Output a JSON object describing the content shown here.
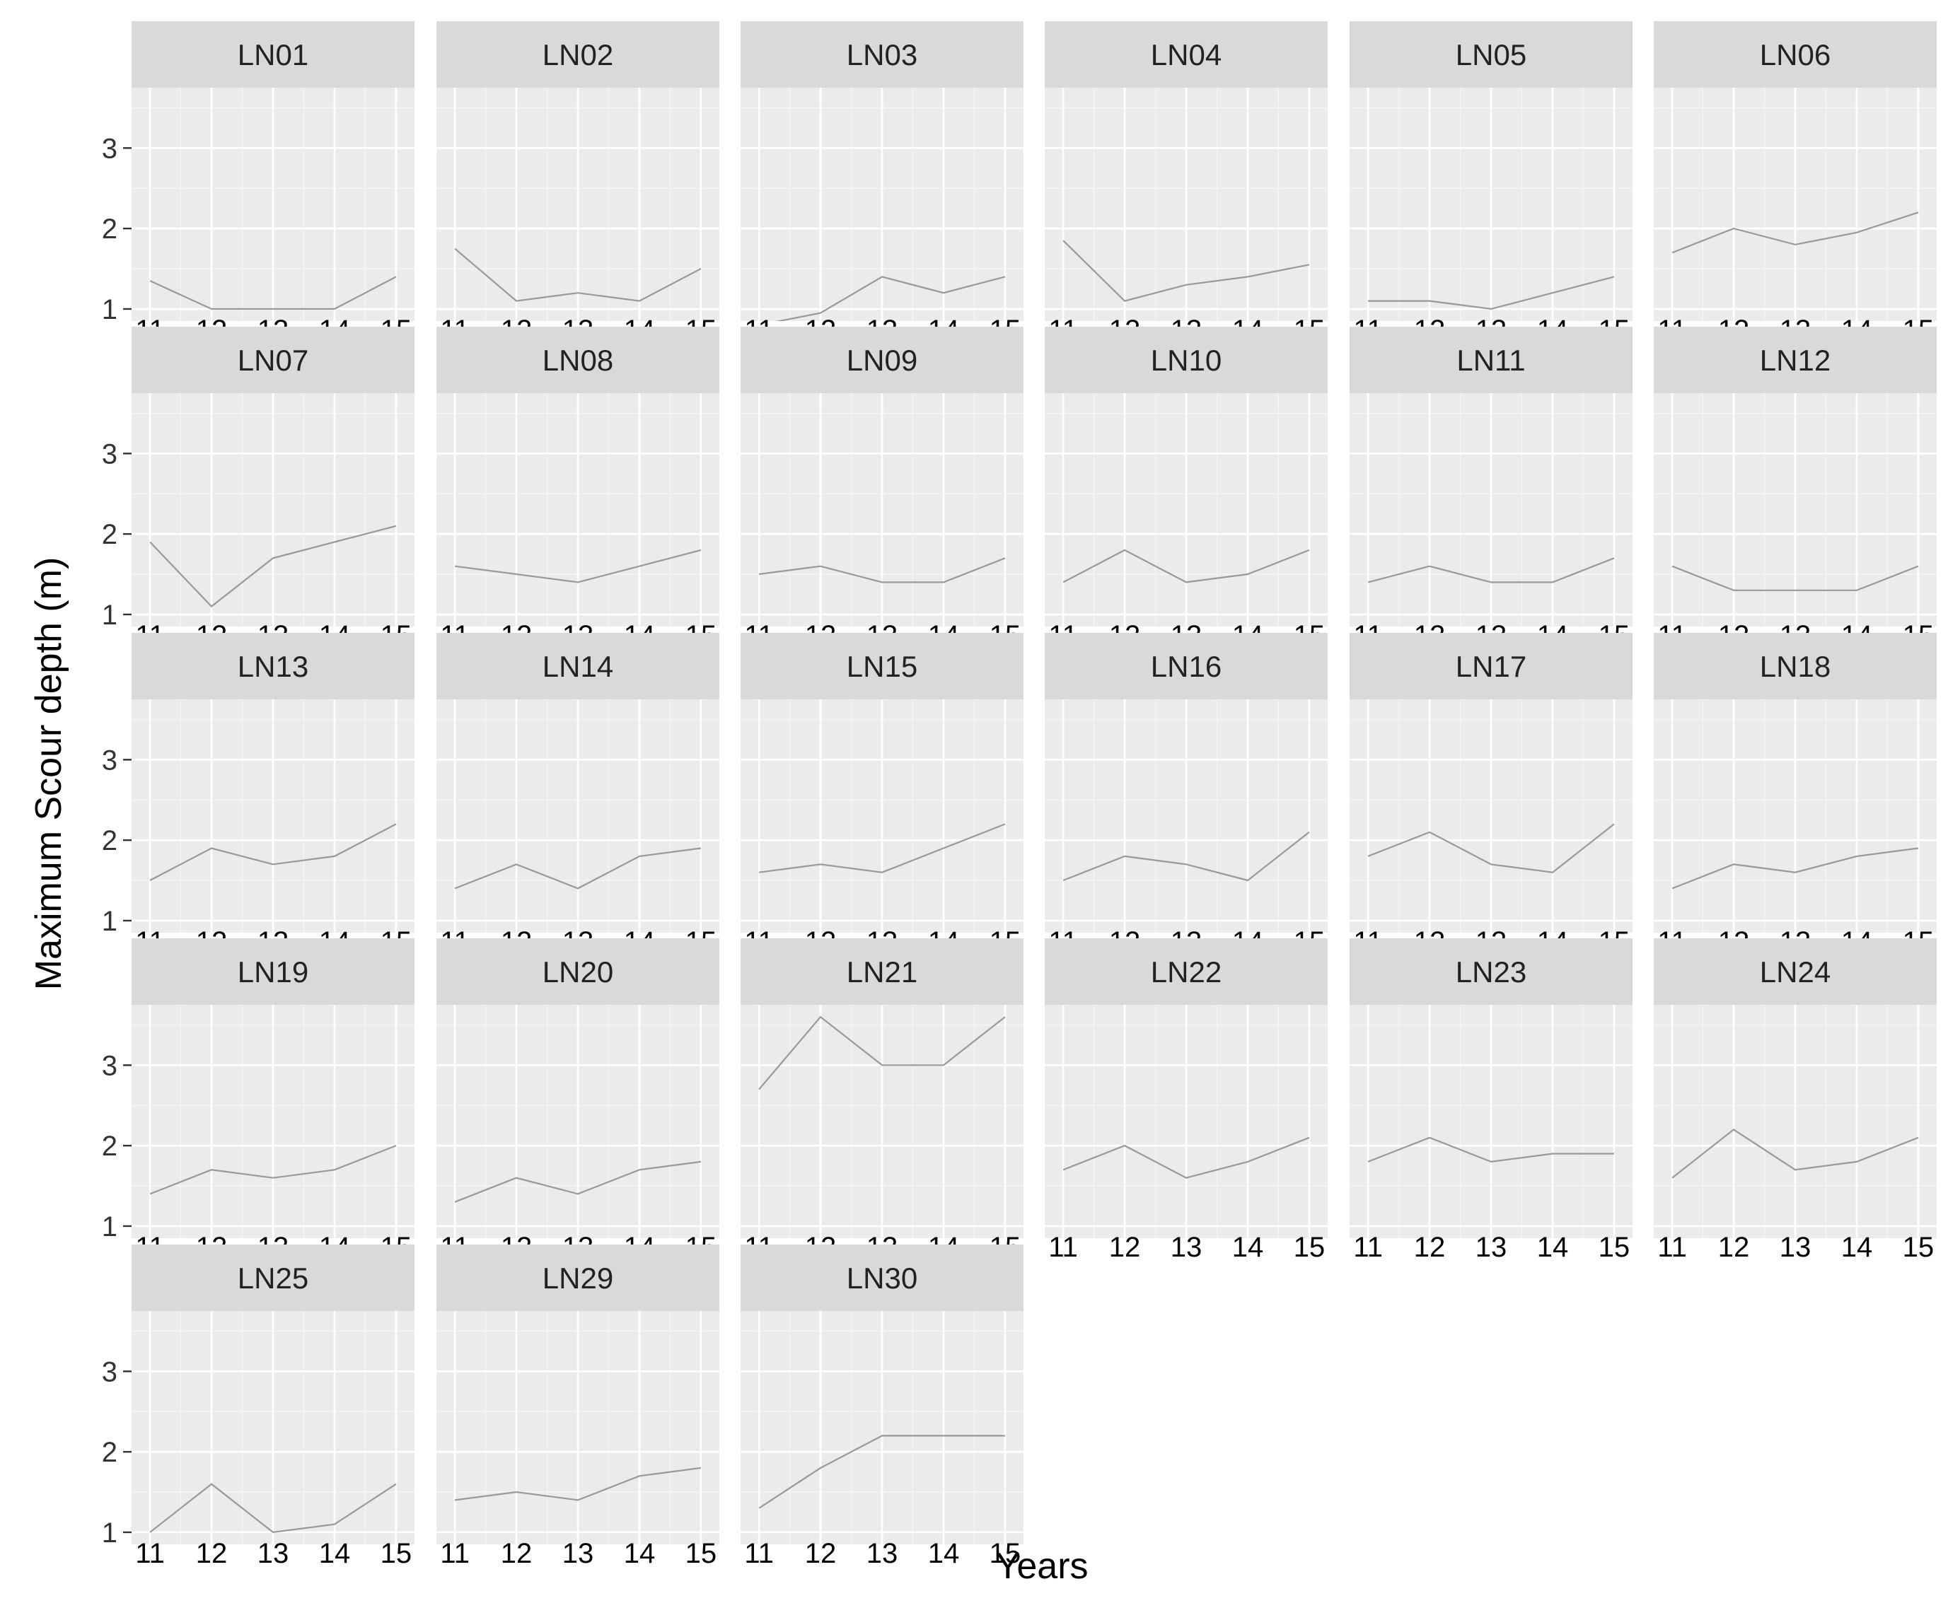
{
  "chart_data": {
    "type": "line",
    "layout": "facet-grid",
    "xlabel": "Years",
    "ylabel": "Maximum Scour depth (m)",
    "x": [
      11,
      12,
      13,
      14,
      15
    ],
    "x_tick_labels": [
      "11",
      "12",
      "13",
      "14",
      "15"
    ],
    "y_ticks": [
      1,
      2,
      3
    ],
    "ylim": [
      0.85,
      3.75
    ],
    "xlim": [
      10.7,
      15.3
    ],
    "grid": true,
    "line_color": "#999999",
    "panel_background": "#ebebeb",
    "strip_background": "#d9d9d9",
    "panels": [
      {
        "name": "LN01",
        "values": [
          1.35,
          1.0,
          1.0,
          1.0,
          1.4
        ]
      },
      {
        "name": "LN02",
        "values": [
          1.75,
          1.1,
          1.2,
          1.1,
          1.5
        ]
      },
      {
        "name": "LN03",
        "values": [
          0.8,
          0.95,
          1.4,
          1.2,
          1.4
        ]
      },
      {
        "name": "LN04",
        "values": [
          1.85,
          1.1,
          1.3,
          1.4,
          1.55
        ]
      },
      {
        "name": "LN05",
        "values": [
          1.1,
          1.1,
          1.0,
          1.2,
          1.4
        ]
      },
      {
        "name": "LN06",
        "values": [
          1.7,
          2.0,
          1.8,
          1.95,
          2.2
        ]
      },
      {
        "name": "LN07",
        "values": [
          1.9,
          1.1,
          1.7,
          1.9,
          2.1
        ]
      },
      {
        "name": "LN08",
        "values": [
          1.6,
          1.5,
          1.4,
          1.6,
          1.8
        ]
      },
      {
        "name": "LN09",
        "values": [
          1.5,
          1.6,
          1.4,
          1.4,
          1.7
        ]
      },
      {
        "name": "LN10",
        "values": [
          1.4,
          1.8,
          1.4,
          1.5,
          1.8
        ]
      },
      {
        "name": "LN11",
        "values": [
          1.4,
          1.6,
          1.4,
          1.4,
          1.7
        ]
      },
      {
        "name": "LN12",
        "values": [
          1.6,
          1.3,
          1.3,
          1.3,
          1.6
        ]
      },
      {
        "name": "LN13",
        "values": [
          1.5,
          1.9,
          1.7,
          1.8,
          2.2
        ]
      },
      {
        "name": "LN14",
        "values": [
          1.4,
          1.7,
          1.4,
          1.8,
          1.9
        ]
      },
      {
        "name": "LN15",
        "values": [
          1.6,
          1.7,
          1.6,
          1.9,
          2.2
        ]
      },
      {
        "name": "LN16",
        "values": [
          1.5,
          1.8,
          1.7,
          1.5,
          2.1
        ]
      },
      {
        "name": "LN17",
        "values": [
          1.8,
          2.1,
          1.7,
          1.6,
          2.2
        ]
      },
      {
        "name": "LN18",
        "values": [
          1.4,
          1.7,
          1.6,
          1.8,
          1.9
        ]
      },
      {
        "name": "LN19",
        "values": [
          1.4,
          1.7,
          1.6,
          1.7,
          2.0
        ]
      },
      {
        "name": "LN20",
        "values": [
          1.3,
          1.6,
          1.4,
          1.7,
          1.8
        ]
      },
      {
        "name": "LN21",
        "values": [
          2.7,
          3.6,
          3.0,
          3.0,
          3.6
        ]
      },
      {
        "name": "LN22",
        "values": [
          1.7,
          2.0,
          1.6,
          1.8,
          2.1
        ]
      },
      {
        "name": "LN23",
        "values": [
          1.8,
          2.1,
          1.8,
          1.9,
          1.9
        ]
      },
      {
        "name": "LN24",
        "values": [
          1.6,
          2.2,
          1.7,
          1.8,
          2.1
        ]
      },
      {
        "name": "LN25",
        "values": [
          1.0,
          1.6,
          1.0,
          1.1,
          1.6
        ]
      },
      {
        "name": "LN29",
        "values": [
          1.4,
          1.5,
          1.4,
          1.7,
          1.8
        ]
      },
      {
        "name": "LN30",
        "values": [
          1.3,
          1.8,
          2.2,
          2.2,
          2.2
        ]
      }
    ]
  }
}
